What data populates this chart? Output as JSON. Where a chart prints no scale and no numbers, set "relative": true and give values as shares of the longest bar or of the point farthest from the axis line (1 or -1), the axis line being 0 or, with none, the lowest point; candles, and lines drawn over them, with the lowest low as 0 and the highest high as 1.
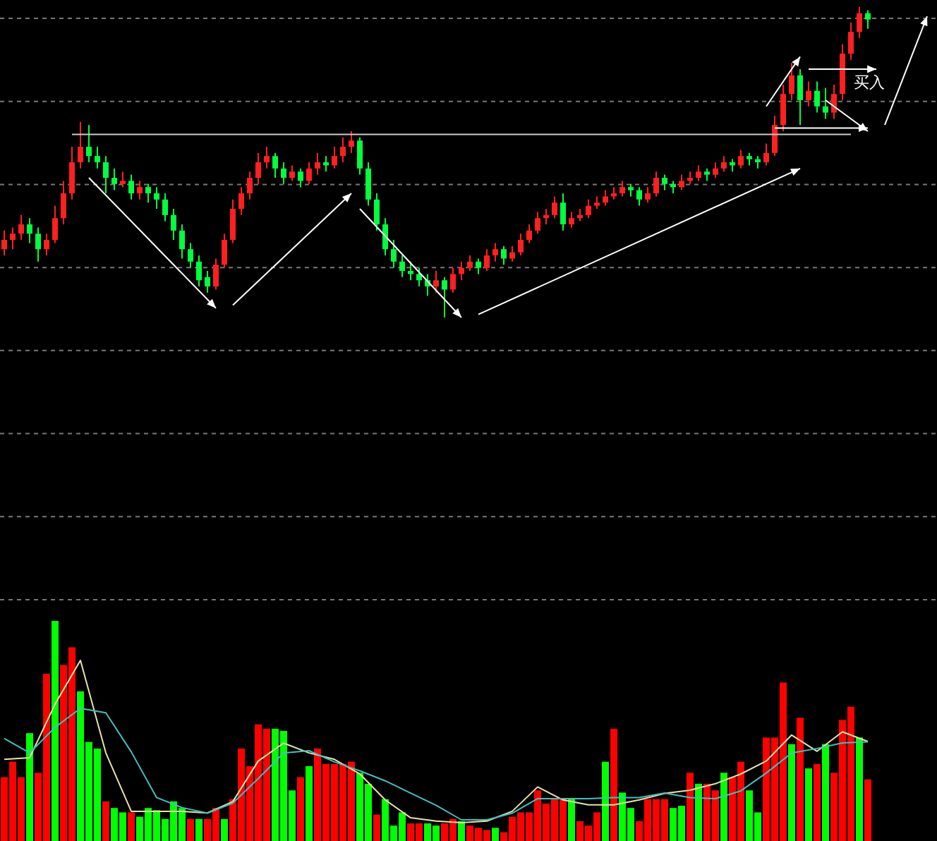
{
  "chart_data": [
    {
      "type": "candlestick",
      "relative": true,
      "grid": true,
      "annotations": [
        "买入"
      ],
      "ref_lines": [
        {
          "axis": "y",
          "value": 0.59,
          "color": "#cccccc"
        }
      ],
      "categories": [
        null,
        null,
        null,
        null,
        null,
        null,
        null,
        null,
        null,
        null,
        null,
        null,
        null,
        null,
        null,
        null,
        null,
        null,
        null,
        null,
        null,
        null,
        null,
        null,
        null,
        null,
        null,
        null,
        null,
        null,
        null,
        null,
        null,
        null,
        null,
        null,
        null,
        null,
        null,
        null,
        null,
        null,
        null,
        null,
        null,
        null,
        null,
        null,
        null,
        null,
        null,
        null,
        null,
        null,
        null,
        null,
        null,
        null,
        null,
        null,
        null,
        null,
        null,
        null,
        null,
        null,
        null,
        null,
        null,
        null,
        null,
        null,
        null,
        null,
        null,
        null,
        null,
        null,
        null,
        null,
        null,
        null,
        null,
        null,
        null,
        null,
        null,
        null,
        null,
        null,
        null,
        null,
        null,
        null,
        null,
        null,
        null,
        null,
        null,
        null,
        null,
        null,
        null
      ],
      "ohlc": [
        [
          0.22,
          0.28,
          0.2,
          0.25
        ],
        [
          0.25,
          0.29,
          0.22,
          0.27
        ],
        [
          0.27,
          0.33,
          0.25,
          0.3
        ],
        [
          0.3,
          0.32,
          0.24,
          0.27
        ],
        [
          0.27,
          0.29,
          0.18,
          0.22
        ],
        [
          0.22,
          0.27,
          0.2,
          0.25
        ],
        [
          0.25,
          0.36,
          0.24,
          0.32
        ],
        [
          0.32,
          0.44,
          0.3,
          0.4
        ],
        [
          0.4,
          0.55,
          0.38,
          0.5
        ],
        [
          0.5,
          0.63,
          0.48,
          0.55
        ],
        [
          0.55,
          0.62,
          0.5,
          0.52
        ],
        [
          0.52,
          0.55,
          0.48,
          0.5
        ],
        [
          0.5,
          0.52,
          0.4,
          0.45
        ],
        [
          0.45,
          0.48,
          0.41,
          0.43
        ],
        [
          0.43,
          0.47,
          0.42,
          0.44
        ],
        [
          0.44,
          0.46,
          0.38,
          0.4
        ],
        [
          0.4,
          0.44,
          0.38,
          0.42
        ],
        [
          0.42,
          0.43,
          0.37,
          0.4
        ],
        [
          0.4,
          0.42,
          0.35,
          0.38
        ],
        [
          0.38,
          0.4,
          0.31,
          0.33
        ],
        [
          0.33,
          0.35,
          0.25,
          0.28
        ],
        [
          0.28,
          0.3,
          0.19,
          0.22
        ],
        [
          0.22,
          0.24,
          0.16,
          0.18
        ],
        [
          0.18,
          0.2,
          0.1,
          0.12
        ],
        [
          0.13,
          0.15,
          0.08,
          0.1
        ],
        [
          0.1,
          0.19,
          0.09,
          0.17
        ],
        [
          0.17,
          0.27,
          0.16,
          0.25
        ],
        [
          0.25,
          0.38,
          0.24,
          0.35
        ],
        [
          0.35,
          0.42,
          0.33,
          0.4
        ],
        [
          0.4,
          0.47,
          0.38,
          0.45
        ],
        [
          0.45,
          0.53,
          0.43,
          0.5
        ],
        [
          0.5,
          0.55,
          0.48,
          0.52
        ],
        [
          0.52,
          0.53,
          0.45,
          0.48
        ],
        [
          0.48,
          0.5,
          0.43,
          0.45
        ],
        [
          0.45,
          0.49,
          0.44,
          0.47
        ],
        [
          0.47,
          0.48,
          0.42,
          0.44
        ],
        [
          0.44,
          0.5,
          0.43,
          0.48
        ],
        [
          0.48,
          0.53,
          0.46,
          0.5
        ],
        [
          0.5,
          0.52,
          0.47,
          0.49
        ],
        [
          0.49,
          0.55,
          0.48,
          0.52
        ],
        [
          0.52,
          0.58,
          0.5,
          0.55
        ],
        [
          0.55,
          0.6,
          0.53,
          0.57
        ],
        [
          0.57,
          0.58,
          0.46,
          0.48
        ],
        [
          0.48,
          0.5,
          0.36,
          0.38
        ],
        [
          0.38,
          0.4,
          0.28,
          0.3
        ],
        [
          0.3,
          0.32,
          0.2,
          0.22
        ],
        [
          0.22,
          0.25,
          0.16,
          0.18
        ],
        [
          0.18,
          0.2,
          0.13,
          0.15
        ],
        [
          0.15,
          0.18,
          0.12,
          0.14
        ],
        [
          0.14,
          0.16,
          0.1,
          0.12
        ],
        [
          0.12,
          0.14,
          0.07,
          0.1
        ],
        [
          0.1,
          0.15,
          0.08,
          0.12
        ],
        [
          0.12,
          0.13,
          0.0,
          0.09
        ],
        [
          0.09,
          0.16,
          0.08,
          0.14
        ],
        [
          0.14,
          0.18,
          0.12,
          0.16
        ],
        [
          0.16,
          0.2,
          0.15,
          0.18
        ],
        [
          0.18,
          0.19,
          0.14,
          0.16
        ],
        [
          0.16,
          0.22,
          0.15,
          0.2
        ],
        [
          0.2,
          0.24,
          0.18,
          0.22
        ],
        [
          0.22,
          0.23,
          0.17,
          0.19
        ],
        [
          0.19,
          0.23,
          0.18,
          0.21
        ],
        [
          0.21,
          0.27,
          0.2,
          0.25
        ],
        [
          0.25,
          0.3,
          0.24,
          0.28
        ],
        [
          0.28,
          0.34,
          0.27,
          0.32
        ],
        [
          0.32,
          0.35,
          0.3,
          0.33
        ],
        [
          0.33,
          0.39,
          0.32,
          0.37
        ],
        [
          0.37,
          0.4,
          0.28,
          0.3
        ],
        [
          0.3,
          0.34,
          0.29,
          0.32
        ],
        [
          0.32,
          0.35,
          0.31,
          0.33
        ],
        [
          0.33,
          0.38,
          0.32,
          0.36
        ],
        [
          0.36,
          0.39,
          0.35,
          0.37
        ],
        [
          0.37,
          0.41,
          0.36,
          0.39
        ],
        [
          0.39,
          0.42,
          0.38,
          0.4
        ],
        [
          0.4,
          0.44,
          0.39,
          0.42
        ],
        [
          0.42,
          0.43,
          0.39,
          0.41
        ],
        [
          0.41,
          0.42,
          0.36,
          0.38
        ],
        [
          0.38,
          0.42,
          0.37,
          0.4
        ],
        [
          0.4,
          0.47,
          0.39,
          0.45
        ],
        [
          0.45,
          0.46,
          0.41,
          0.43
        ],
        [
          0.43,
          0.44,
          0.4,
          0.42
        ],
        [
          0.42,
          0.46,
          0.41,
          0.44
        ],
        [
          0.44,
          0.47,
          0.43,
          0.45
        ],
        [
          0.45,
          0.49,
          0.44,
          0.47
        ],
        [
          0.47,
          0.48,
          0.44,
          0.46
        ],
        [
          0.46,
          0.5,
          0.45,
          0.48
        ],
        [
          0.48,
          0.52,
          0.47,
          0.5
        ],
        [
          0.5,
          0.51,
          0.47,
          0.49
        ],
        [
          0.49,
          0.54,
          0.48,
          0.52
        ],
        [
          0.52,
          0.53,
          0.49,
          0.51
        ],
        [
          0.51,
          0.52,
          0.48,
          0.5
        ],
        [
          0.5,
          0.56,
          0.49,
          0.53
        ],
        [
          0.53,
          0.65,
          0.52,
          0.62
        ],
        [
          0.62,
          0.75,
          0.6,
          0.72
        ],
        [
          0.72,
          0.82,
          0.7,
          0.78
        ],
        [
          0.78,
          0.8,
          0.62,
          0.7
        ],
        [
          0.7,
          0.76,
          0.68,
          0.73
        ],
        [
          0.73,
          0.76,
          0.66,
          0.68
        ],
        [
          0.68,
          0.74,
          0.64,
          0.66
        ],
        [
          0.66,
          0.75,
          0.64,
          0.72
        ],
        [
          0.72,
          0.88,
          0.7,
          0.85
        ],
        [
          0.85,
          0.95,
          0.83,
          0.92
        ],
        [
          0.92,
          1.0,
          0.9,
          0.98
        ],
        [
          0.98,
          0.99,
          0.93,
          0.96
        ]
      ]
    },
    {
      "type": "bar",
      "relative": true,
      "categories": [
        null,
        null,
        null,
        null,
        null,
        null,
        null,
        null,
        null,
        null,
        null,
        null,
        null,
        null,
        null,
        null,
        null,
        null,
        null,
        null,
        null,
        null,
        null,
        null,
        null,
        null,
        null,
        null,
        null,
        null,
        null,
        null,
        null,
        null,
        null,
        null,
        null,
        null,
        null,
        null,
        null,
        null,
        null,
        null,
        null,
        null,
        null,
        null,
        null,
        null,
        null,
        null,
        null,
        null,
        null,
        null,
        null,
        null,
        null,
        null,
        null,
        null,
        null,
        null,
        null,
        null,
        null,
        null,
        null,
        null,
        null,
        null,
        null,
        null,
        null,
        null,
        null,
        null,
        null,
        null,
        null,
        null,
        null,
        null,
        null,
        null,
        null,
        null,
        null,
        null,
        null,
        null,
        null,
        null,
        null,
        null,
        null,
        null,
        null,
        null,
        null,
        null,
        null
      ],
      "series": [
        {
          "type": "bar",
          "values": [
            0.29,
            0.36,
            0.29,
            0.49,
            0.31,
            0.76,
            1.0,
            0.8,
            0.88,
            0.68,
            0.45,
            0.42,
            0.18,
            0.15,
            0.13,
            0.13,
            0.11,
            0.15,
            0.14,
            0.1,
            0.18,
            0.15,
            0.1,
            0.1,
            0.1,
            0.15,
            0.1,
            0.19,
            0.42,
            0.34,
            0.53,
            0.51,
            0.51,
            0.5,
            0.23,
            0.29,
            0.34,
            0.42,
            0.35,
            0.35,
            0.35,
            0.36,
            0.31,
            0.26,
            0.12,
            0.19,
            0.07,
            0.13,
            0.08,
            0.08,
            0.08,
            0.07,
            0.08,
            0.1,
            0.09,
            0.07,
            0.06,
            0.05,
            0.06,
            0.04,
            0.11,
            0.13,
            0.13,
            0.23,
            0.17,
            0.19,
            0.19,
            0.19,
            0.09,
            0.07,
            0.13,
            0.36,
            0.51,
            0.22,
            0.15,
            0.09,
            0.19,
            0.19,
            0.19,
            0.15,
            0.16,
            0.31,
            0.26,
            0.26,
            0.23,
            0.31,
            0.29,
            0.36,
            0.23,
            0.13,
            0.47,
            0.47,
            0.72,
            0.44,
            0.56,
            0.33,
            0.35,
            0.44,
            0.31,
            0.55,
            0.61,
            0.47,
            0.28
          ],
          "colors": [
            "#ff0000",
            "#ff0000",
            "#ff0000",
            "#00ff00",
            "#ff0000",
            "#ff0000",
            "#00ff00",
            "#ff0000",
            "#ff0000",
            "#00ff00",
            "#00ff00",
            "#00ff00",
            "#ff0000",
            "#00ff00",
            "#00ff00",
            "#ff0000",
            "#00ff00",
            "#00ff00",
            "#00ff00",
            "#00ff00",
            "#00ff00",
            "#00ff00",
            "#ff0000",
            "#00ff00",
            "#ff0000",
            "#ff0000",
            "#00ff00",
            "#ff0000",
            "#ff0000",
            "#ff0000",
            "#ff0000",
            "#ff0000",
            "#00ff00",
            "#00ff00",
            "#00ff00",
            "#ff0000",
            "#00ff00",
            "#ff0000",
            "#ff0000",
            "#ff0000",
            "#ff0000",
            "#ff0000",
            "#00ff00",
            "#00ff00",
            "#ff0000",
            "#00ff00",
            "#00ff00",
            "#00ff00",
            "#ff0000",
            "#ff0000",
            "#00ff00",
            "#00ff00",
            "#ff0000",
            "#ff0000",
            "#00ff00",
            "#ff0000",
            "#ff0000",
            "#ff0000",
            "#00ff00",
            "#ff0000",
            "#ff0000",
            "#ff0000",
            "#ff0000",
            "#ff0000",
            "#ff0000",
            "#ff0000",
            "#ff0000",
            "#00ff00",
            "#ff0000",
            "#ff0000",
            "#ff0000",
            "#00ff00",
            "#ff0000",
            "#00ff00",
            "#00ff00",
            "#ff0000",
            "#ff0000",
            "#ff0000",
            "#ff0000",
            "#00ff00",
            "#00ff00",
            "#ff0000",
            "#00ff00",
            "#ff0000",
            "#ff0000",
            "#00ff00",
            "#ff0000",
            "#ff0000",
            "#00ff00",
            "#00ff00",
            "#ff0000",
            "#ff0000",
            "#ff0000",
            "#00ff00",
            "#ff0000",
            "#00ff00",
            "#ff0000",
            "#00ff00",
            "#ff0000",
            "#ff0000",
            "#ff0000",
            "#00ff00",
            "#ff0000"
          ]
        }
      ]
    },
    {
      "type": "line",
      "relative": true,
      "categories": [
        null,
        null,
        null,
        null,
        null,
        null,
        null,
        null,
        null,
        null,
        null,
        null,
        null,
        null,
        null,
        null,
        null,
        null,
        null,
        null,
        null,
        null,
        null,
        null,
        null,
        null,
        null,
        null,
        null,
        null,
        null,
        null,
        null,
        null,
        null
      ],
      "series": [
        {
          "color": "#e8e4a8",
          "values": [
            0.39,
            0.4,
            0.73,
            1.0,
            0.43,
            0.07,
            0.07,
            0.07,
            0.06,
            0.13,
            0.38,
            0.49,
            0.43,
            0.39,
            0.3,
            0.14,
            0.03,
            0.01,
            0.0,
            0.01,
            0.07,
            0.22,
            0.14,
            0.11,
            0.11,
            0.14,
            0.18,
            0.2,
            0.24,
            0.3,
            0.38,
            0.54,
            0.44,
            0.56,
            0.5
          ]
        }
      ]
    },
    {
      "type": "line",
      "relative": true,
      "categories": [
        null,
        null,
        null,
        null,
        null,
        null,
        null,
        null,
        null,
        null,
        null,
        null,
        null,
        null,
        null,
        null,
        null,
        null,
        null,
        null,
        null,
        null,
        null,
        null,
        null,
        null,
        null,
        null,
        null,
        null,
        null,
        null,
        null,
        null,
        null
      ],
      "series": [
        {
          "color": "#40c0c0",
          "values": [
            0.73,
            0.6,
            0.83,
            1.0,
            0.96,
            0.61,
            0.2,
            0.11,
            0.06,
            0.15,
            0.37,
            0.6,
            0.62,
            0.52,
            0.44,
            0.35,
            0.24,
            0.13,
            0.0,
            0.0,
            0.06,
            0.19,
            0.19,
            0.19,
            0.2,
            0.2,
            0.24,
            0.2,
            0.19,
            0.26,
            0.42,
            0.6,
            0.64,
            0.69,
            0.7
          ]
        }
      ]
    }
  ]
}
